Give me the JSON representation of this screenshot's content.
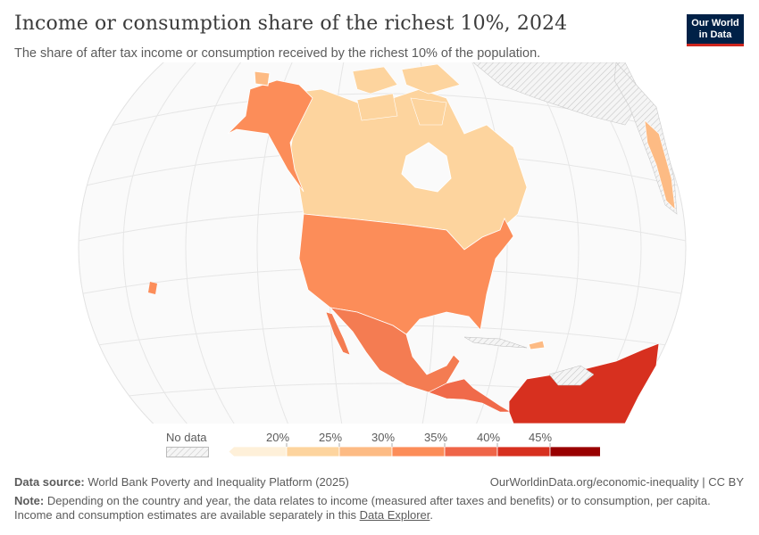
{
  "header": {
    "title": "Income or consumption share of the richest 10%, 2024",
    "subtitle": "The share of after tax income or consumption received by the richest 10% of the population."
  },
  "logo": {
    "line1": "Our World",
    "line2": "in Data"
  },
  "legend": {
    "no_data_label": "No data",
    "ticks": [
      "20%",
      "25%",
      "30%",
      "35%",
      "40%",
      "45%"
    ],
    "bins": [
      {
        "from": 15,
        "to": 20,
        "color": "#fef0d9"
      },
      {
        "from": 20,
        "to": 25,
        "color": "#fdd49e"
      },
      {
        "from": 25,
        "to": 30,
        "color": "#fdbb84"
      },
      {
        "from": 30,
        "to": 35,
        "color": "#fc8d59"
      },
      {
        "from": 35,
        "to": 40,
        "color": "#ef6548"
      },
      {
        "from": 40,
        "to": 45,
        "color": "#d7301f"
      },
      {
        "from": 45,
        "to": 50,
        "color": "#990000"
      }
    ]
  },
  "map_colors": {
    "canada": "#fdd49e",
    "usa": "#fc8d59",
    "alaska": "#fc8d59",
    "mexico": "#f47c52",
    "greenland_nodata": "#eeeeee",
    "central_america": "#f06a4a",
    "south_america": "#d7301f",
    "globe": "#fafafa",
    "grid": "#e6e6e6"
  },
  "footer": {
    "source_label": "Data source:",
    "source_text": "World Bank Poverty and Inequality Platform (2025)",
    "url": "OurWorldinData.org/economic-inequality | CC BY",
    "note_label": "Note:",
    "note_text": "Depending on the country and year, the data relates to income (measured after taxes and benefits) or to consumption, per capita.",
    "note_text2": "Income and consumption estimates are available separately in this",
    "note_link": "Data Explorer",
    "note_end": "."
  }
}
